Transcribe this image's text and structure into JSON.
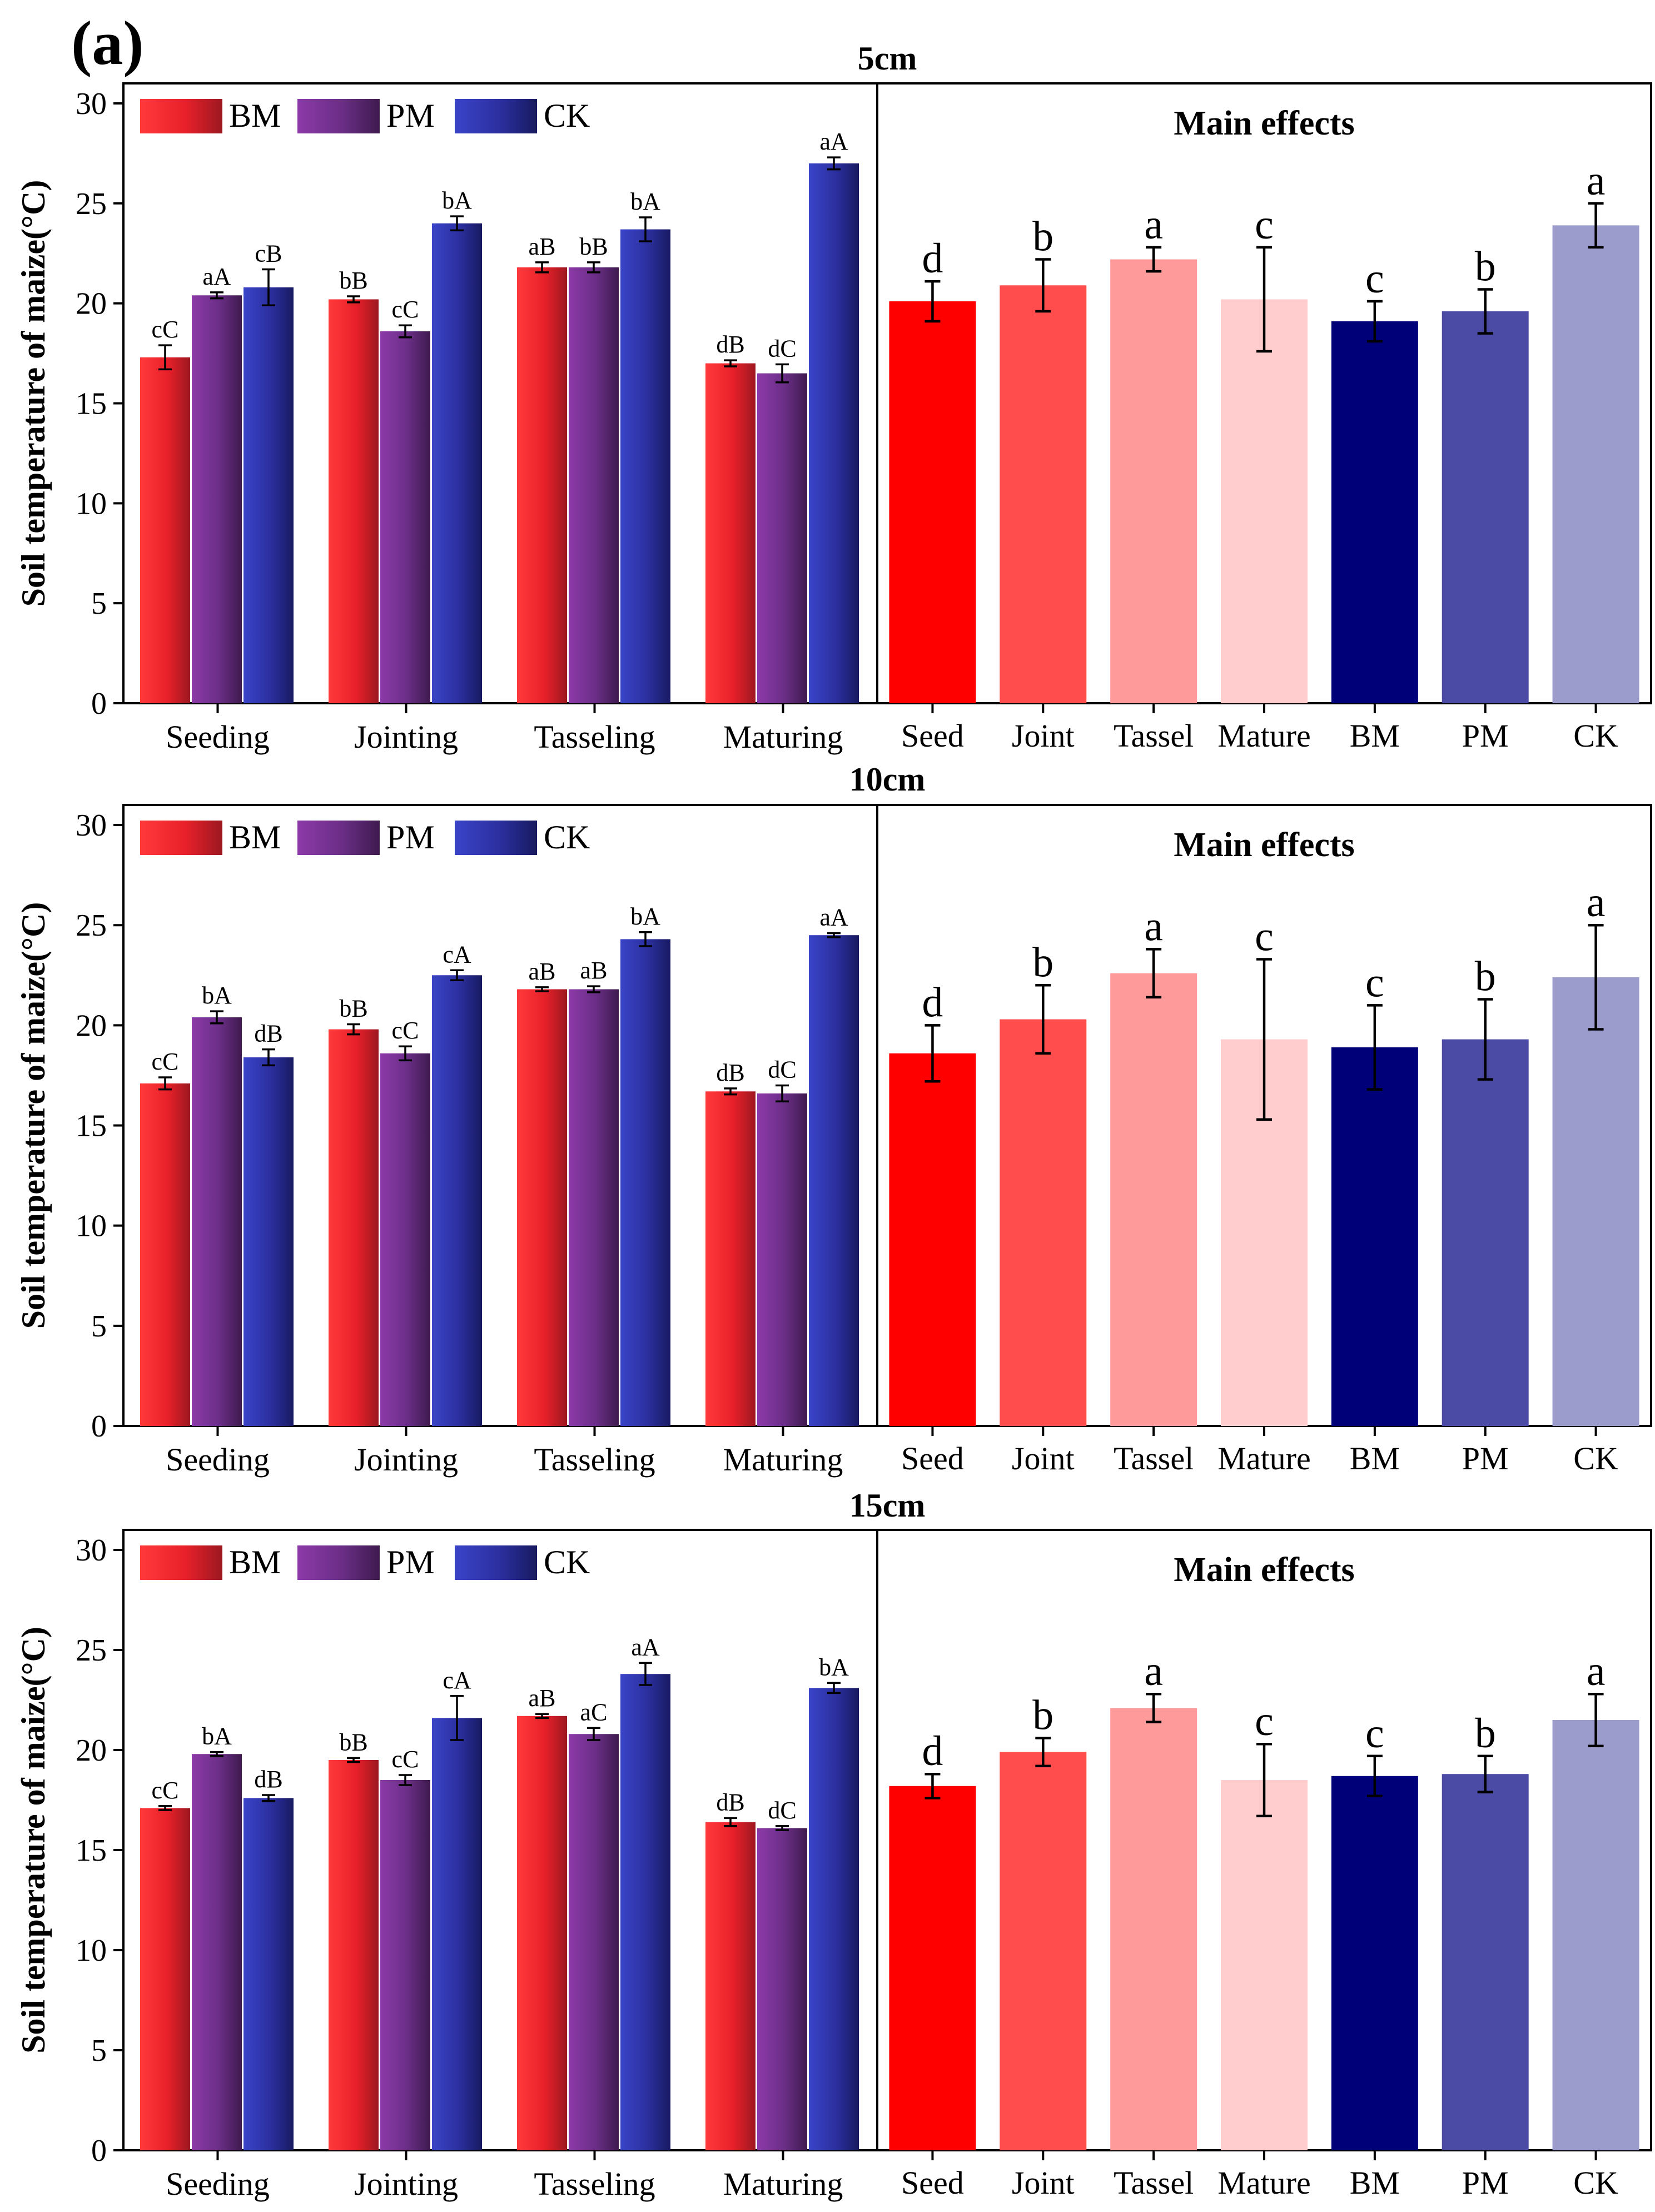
{
  "panel_label": "(a)",
  "chart_data": [
    {
      "type": "bar",
      "depth": "5cm",
      "title": "5cm",
      "ylabel": "Soil temperature of maize(°C)",
      "ylim": [
        0,
        31
      ],
      "yticks": [
        "0",
        "5",
        "10",
        "15",
        "20",
        "25",
        "30"
      ],
      "grid": false,
      "legend": "top-left",
      "grouped": {
        "categories": [
          "Seeding",
          "Jointing",
          "Tasseling",
          "Maturing"
        ],
        "series": [
          {
            "name": "BM",
            "values": [
              17.3,
              20.2,
              21.8,
              17.0
            ],
            "errors": [
              0.6,
              0.15,
              0.25,
              0.15
            ],
            "labels": [
              "cC",
              "bB",
              "aB",
              "dB"
            ]
          },
          {
            "name": "PM",
            "values": [
              20.4,
              18.6,
              21.8,
              16.5
            ],
            "errors": [
              0.15,
              0.3,
              0.25,
              0.45
            ],
            "labels": [
              "aA",
              "cC",
              "bB",
              "dC"
            ]
          },
          {
            "name": "CK",
            "values": [
              20.8,
              24.0,
              23.7,
              27.0
            ],
            "errors": [
              0.9,
              0.35,
              0.6,
              0.3
            ],
            "labels": [
              "cB",
              "bA",
              "bA",
              "aA"
            ]
          }
        ]
      },
      "main_effects": {
        "title": "Main effects",
        "categories": [
          "Seed",
          "Joint",
          "Tassel",
          "Mature",
          "BM",
          "PM",
          "CK"
        ],
        "values": [
          20.1,
          20.9,
          22.2,
          20.2,
          19.1,
          19.6,
          23.9
        ],
        "errors": [
          1.0,
          1.3,
          0.6,
          2.6,
          1.0,
          1.1,
          1.1
        ],
        "labels": [
          "d",
          "b",
          "a",
          "c",
          "c",
          "b",
          "a"
        ]
      }
    },
    {
      "type": "bar",
      "depth": "10cm",
      "title": "10cm",
      "ylabel": "Soil temperature of maize(°C)",
      "ylim": [
        0,
        31
      ],
      "yticks": [
        "0",
        "5",
        "10",
        "15",
        "20",
        "25",
        "30"
      ],
      "grid": false,
      "legend": "top-left",
      "grouped": {
        "categories": [
          "Seeding",
          "Jointing",
          "Tasseling",
          "Maturing"
        ],
        "series": [
          {
            "name": "BM",
            "values": [
              17.1,
              19.8,
              21.8,
              16.7
            ],
            "errors": [
              0.3,
              0.25,
              0.1,
              0.15
            ],
            "labels": [
              "cC",
              "bB",
              "aB",
              "dB"
            ]
          },
          {
            "name": "PM",
            "values": [
              20.4,
              18.6,
              21.8,
              16.6
            ],
            "errors": [
              0.3,
              0.35,
              0.15,
              0.4
            ],
            "labels": [
              "bA",
              "cC",
              "aB",
              "dC"
            ]
          },
          {
            "name": "CK",
            "values": [
              18.4,
              22.5,
              24.3,
              24.5
            ],
            "errors": [
              0.4,
              0.25,
              0.35,
              0.1
            ],
            "labels": [
              "dB",
              "cA",
              "bA",
              "aA"
            ]
          }
        ]
      },
      "main_effects": {
        "title": "Main effects",
        "categories": [
          "Seed",
          "Joint",
          "Tassel",
          "Mature",
          "BM",
          "PM",
          "CK"
        ],
        "values": [
          18.6,
          20.3,
          22.6,
          19.3,
          18.9,
          19.3,
          22.4
        ],
        "errors": [
          1.4,
          1.7,
          1.2,
          4.0,
          2.1,
          2.0,
          2.6
        ],
        "labels": [
          "d",
          "b",
          "a",
          "c",
          "c",
          "b",
          "a"
        ]
      }
    },
    {
      "type": "bar",
      "depth": "15cm",
      "title": "15cm",
      "ylabel": "Soil temperature of maize(°C)",
      "ylim": [
        0,
        31
      ],
      "yticks": [
        "0",
        "5",
        "10",
        "15",
        "20",
        "25",
        "30"
      ],
      "grid": false,
      "legend": "top-left",
      "grouped": {
        "categories": [
          "Seeding",
          "Jointing",
          "Tasseling",
          "Maturing"
        ],
        "series": [
          {
            "name": "BM",
            "values": [
              17.1,
              19.5,
              21.7,
              16.4
            ],
            "errors": [
              0.1,
              0.1,
              0.1,
              0.2
            ],
            "labels": [
              "cC",
              "bB",
              "aB",
              "dB"
            ]
          },
          {
            "name": "PM",
            "values": [
              19.8,
              18.5,
              20.8,
              16.1
            ],
            "errors": [
              0.1,
              0.25,
              0.3,
              0.1
            ],
            "labels": [
              "bA",
              "cC",
              "aC",
              "dC"
            ]
          },
          {
            "name": "CK",
            "values": [
              17.6,
              21.6,
              23.8,
              23.1
            ],
            "errors": [
              0.15,
              1.1,
              0.55,
              0.25
            ],
            "labels": [
              "dB",
              "cA",
              "aA",
              "bA"
            ]
          }
        ]
      },
      "main_effects": {
        "title": "Main effects",
        "categories": [
          "Seed",
          "Joint",
          "Tassel",
          "Mature",
          "BM",
          "PM",
          "CK"
        ],
        "values": [
          18.2,
          19.9,
          22.1,
          18.5,
          18.7,
          18.8,
          21.5
        ],
        "errors": [
          0.6,
          0.7,
          0.7,
          1.8,
          1.0,
          0.9,
          1.3
        ],
        "labels": [
          "d",
          "b",
          "a",
          "c",
          "c",
          "b",
          "a"
        ]
      }
    }
  ],
  "colors": {
    "BM": "#e8202a",
    "PM": "#6a2e86",
    "CK": "#2b2f9e",
    "main": [
      "#ff0000",
      "#ff4c4c",
      "#ff9a9a",
      "#ffcdcd",
      "#000078",
      "#4b4ba6",
      "#9b9bcc"
    ]
  }
}
